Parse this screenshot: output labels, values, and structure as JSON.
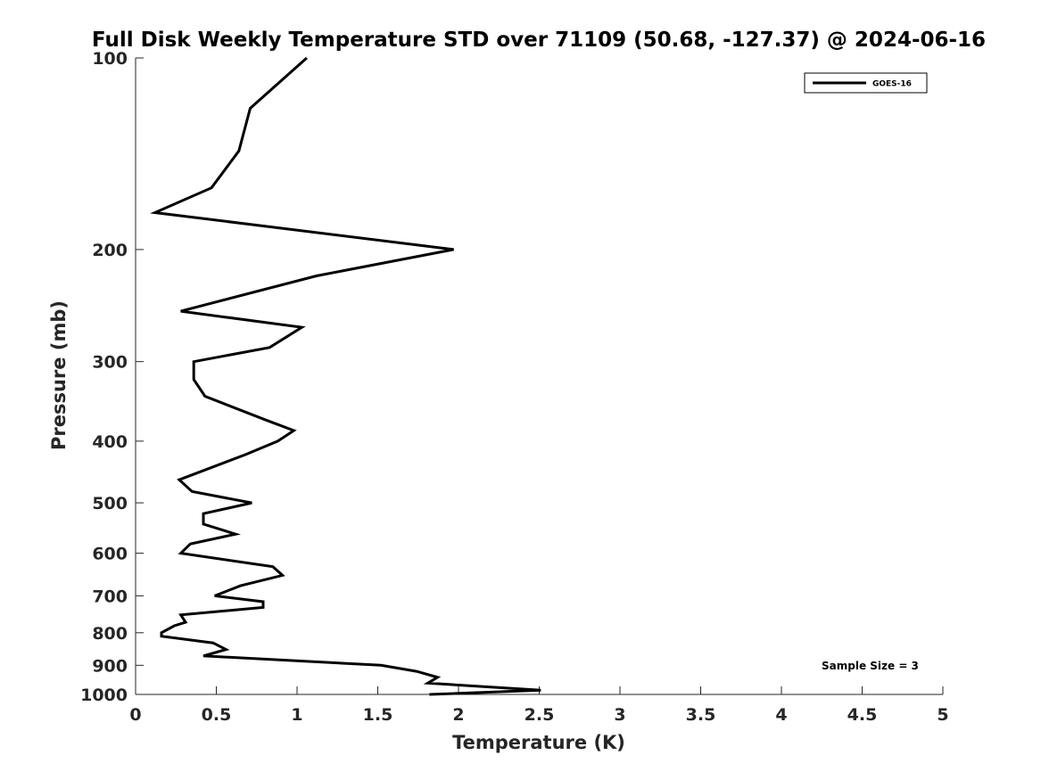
{
  "chart_data": {
    "type": "line",
    "title": "Full Disk Weekly Temperature STD over 71109 (50.68, -127.37) @ 2024-06-16",
    "xlabel": "Temperature (K)",
    "ylabel": "Pressure (mb)",
    "xlim": [
      0,
      5
    ],
    "ylim": [
      100,
      1000
    ],
    "y_scale": "log",
    "y_reversed": true,
    "xticks": [
      0,
      0.5,
      1,
      1.5,
      2,
      2.5,
      3,
      3.5,
      4,
      4.5,
      5
    ],
    "xtick_labels": [
      "0",
      "0.5",
      "1",
      "1.5",
      "2",
      "2.5",
      "3",
      "3.5",
      "4",
      "4.5",
      "5"
    ],
    "yticks": [
      100,
      200,
      300,
      400,
      500,
      600,
      700,
      800,
      900,
      1000
    ],
    "ytick_labels": [
      "100",
      "200",
      "300",
      "400",
      "500",
      "600",
      "700",
      "800",
      "900",
      "1000"
    ],
    "grid": false,
    "legend_position": "top-right",
    "annotation": "Sample Size = 3",
    "series": [
      {
        "name": "GOES-16",
        "color": "#000000",
        "x": [
          1.06,
          0.71,
          0.64,
          0.47,
          0.12,
          1.97,
          1.12,
          0.28,
          1.03,
          0.83,
          0.36,
          0.36,
          0.43,
          0.8,
          0.98,
          0.88,
          0.68,
          0.27,
          0.35,
          0.72,
          0.42,
          0.42,
          0.62,
          0.34,
          0.28,
          0.85,
          0.91,
          0.65,
          0.49,
          0.79,
          0.79,
          0.28,
          0.31,
          0.24,
          0.16,
          0.16,
          0.48,
          0.56,
          0.42,
          1.52,
          1.74,
          1.87,
          1.81,
          2.51,
          1.82
        ],
        "y": [
          100,
          120,
          140,
          160,
          175,
          200,
          220,
          250,
          265,
          285,
          300,
          320,
          340,
          370,
          385,
          400,
          420,
          460,
          480,
          500,
          520,
          540,
          560,
          580,
          600,
          630,
          650,
          675,
          700,
          715,
          730,
          750,
          770,
          780,
          800,
          810,
          830,
          850,
          870,
          900,
          920,
          940,
          960,
          985,
          1000
        ]
      }
    ]
  }
}
